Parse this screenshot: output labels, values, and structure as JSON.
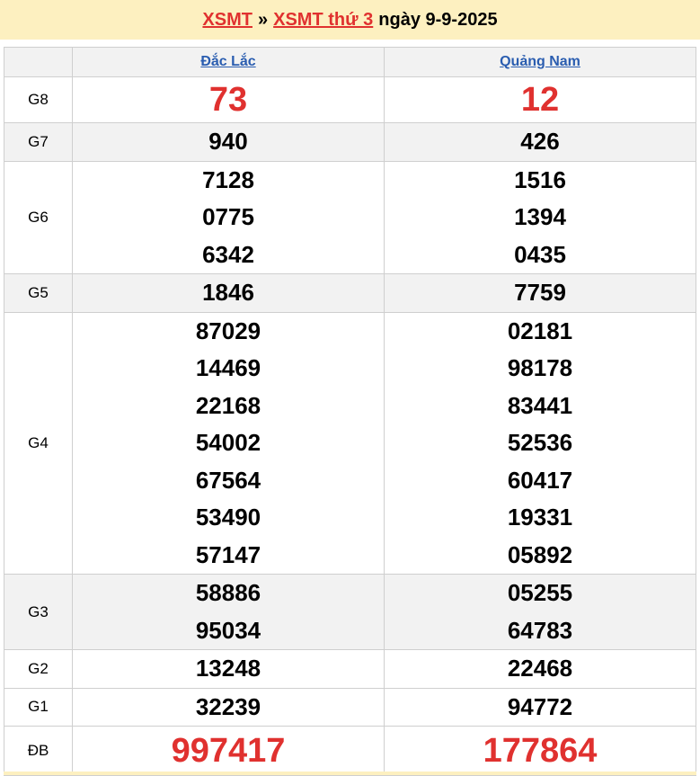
{
  "header": {
    "link1": "XSMT",
    "separator": "»",
    "link2": "XSMT thứ 3",
    "date_text": "ngày 9-9-2025"
  },
  "provinces": [
    "Đắc Lắc",
    "Quảng Nam"
  ],
  "colors": {
    "accent_red": "#e0312f",
    "link_blue": "#2a5db0",
    "header_bg": "#fdf0c0",
    "row_gray": "#f2f2f2"
  },
  "prizes": [
    {
      "label": "G8",
      "big": true,
      "values": [
        [
          "73"
        ],
        [
          "12"
        ]
      ]
    },
    {
      "label": "G7",
      "values": [
        [
          "940"
        ],
        [
          "426"
        ]
      ]
    },
    {
      "label": "G6",
      "values": [
        [
          "7128",
          "0775",
          "6342"
        ],
        [
          "1516",
          "1394",
          "0435"
        ]
      ]
    },
    {
      "label": "G5",
      "values": [
        [
          "1846"
        ],
        [
          "7759"
        ]
      ]
    },
    {
      "label": "G4",
      "values": [
        [
          "87029",
          "14469",
          "22168",
          "54002",
          "67564",
          "53490",
          "57147"
        ],
        [
          "02181",
          "98178",
          "83441",
          "52536",
          "60417",
          "19331",
          "05892"
        ]
      ]
    },
    {
      "label": "G3",
      "values": [
        [
          "58886",
          "95034"
        ],
        [
          "05255",
          "64783"
        ]
      ]
    },
    {
      "label": "G2",
      "values": [
        [
          "13248"
        ],
        [
          "22468"
        ]
      ]
    },
    {
      "label": "G1",
      "values": [
        [
          "32239"
        ],
        [
          "94772"
        ]
      ]
    },
    {
      "label": "ĐB",
      "big": true,
      "values": [
        [
          "997417"
        ],
        [
          "177864"
        ]
      ]
    }
  ]
}
